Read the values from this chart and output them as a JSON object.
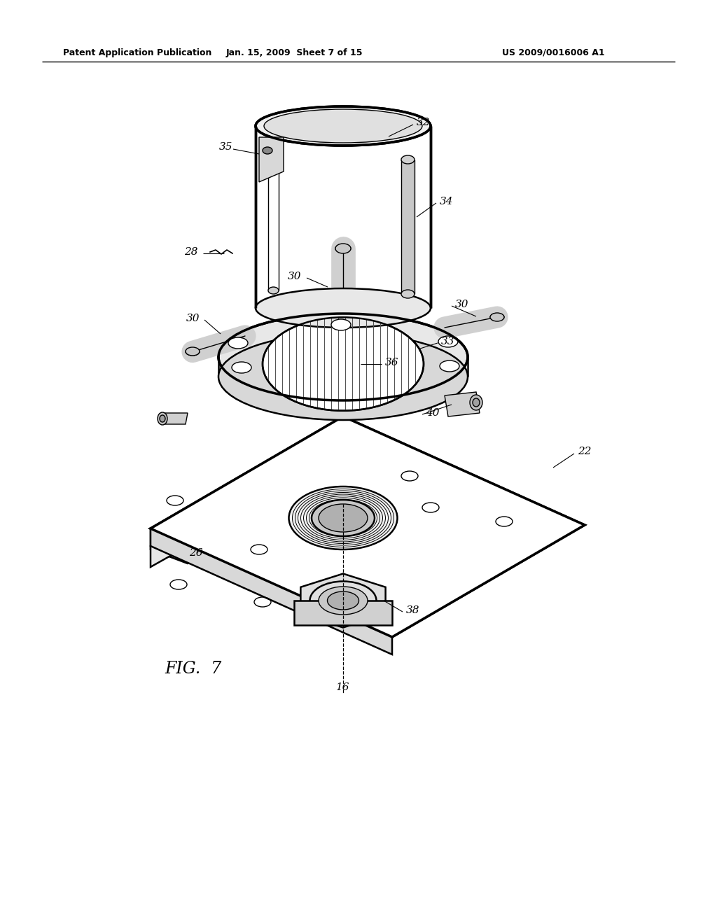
{
  "header_left": "Patent Application Publication",
  "header_mid": "Jan. 15, 2009  Sheet 7 of 15",
  "header_right": "US 2009/0016006 A1",
  "fig_label": "FIG.  7",
  "bg": "#ffffff",
  "lc": "#000000",
  "gray_light": "#e8e8e8",
  "gray_mid": "#c8c8c8",
  "gray_dark": "#a0a0a0",
  "lw_main": 1.8,
  "lw_thin": 1.0,
  "lw_thick": 2.5
}
